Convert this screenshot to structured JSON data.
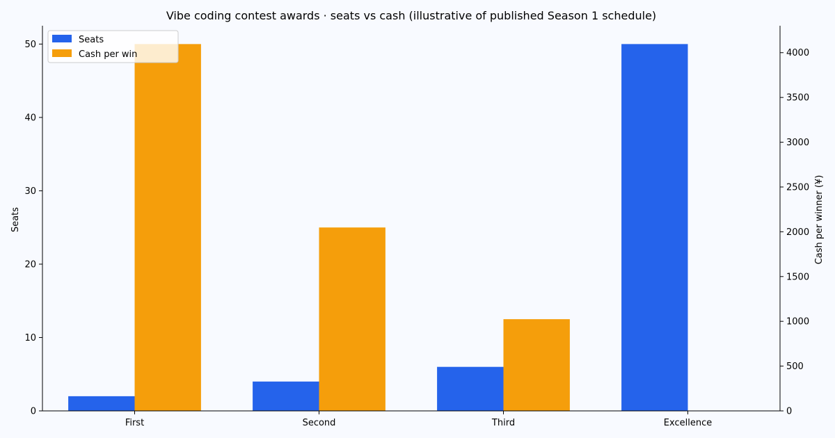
{
  "chart_data": {
    "type": "bar",
    "title": "Vibe coding contest awards · seats vs cash (illustrative of published Season 1 schedule)",
    "xlabel": "",
    "ylabel": "Seats",
    "y2label": "Cash per winner (¥)",
    "categories": [
      "First",
      "Second",
      "Third",
      "Excellence"
    ],
    "series": [
      {
        "name": "Seats",
        "axis": "left",
        "color": "#2563eb",
        "values": [
          2,
          4,
          6,
          50
        ]
      },
      {
        "name": "Cash per winner (¥)",
        "axis": "right",
        "color": "#f59e0b",
        "values": [
          4096,
          2048,
          1024,
          0
        ]
      }
    ],
    "ylim": [
      0,
      52.5
    ],
    "y2lim": [
      0,
      4300.8
    ],
    "yticks": [
      0,
      10,
      20,
      30,
      40,
      50
    ],
    "y2ticks": [
      0,
      500,
      1000,
      1500,
      2000,
      2500,
      3000,
      3500,
      4000
    ],
    "legend": {
      "placement": "upper-left",
      "entries": [
        "Seats",
        "Cash per win"
      ]
    },
    "grid": false
  }
}
